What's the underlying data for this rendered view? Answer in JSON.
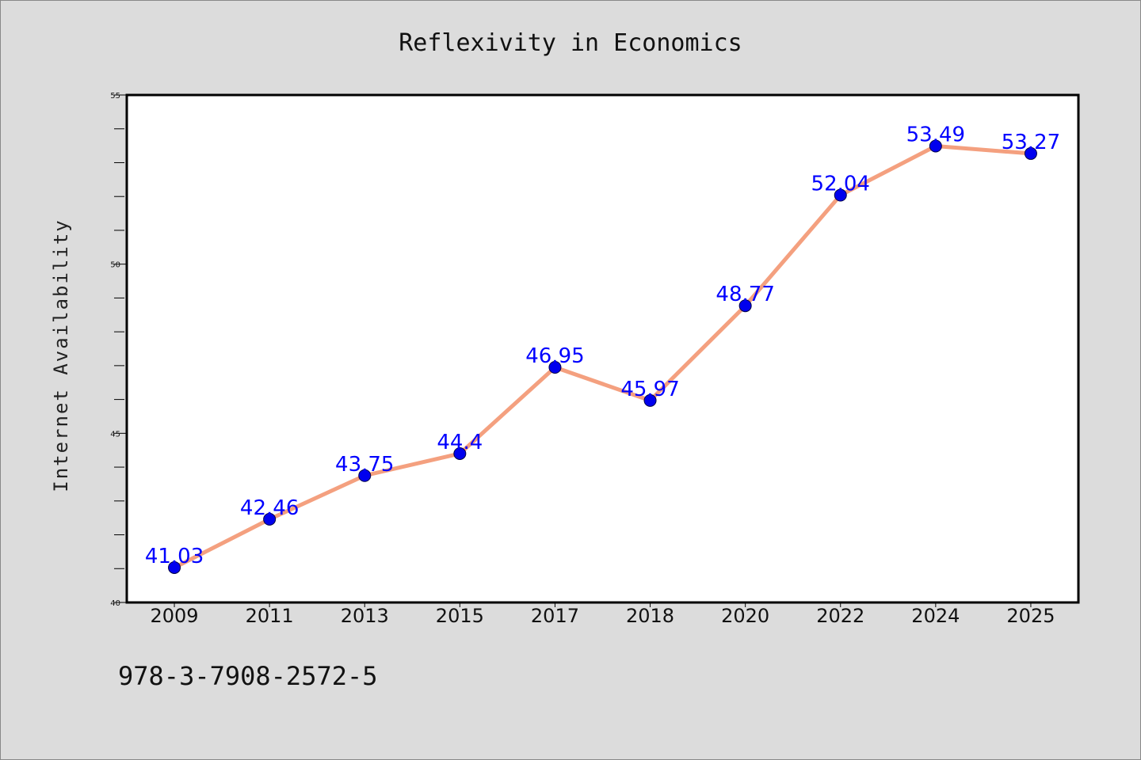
{
  "chart_data": {
    "type": "line",
    "title": "Reflexivity in Economics",
    "xlabel": "",
    "ylabel": "Internet Availability",
    "categories": [
      "2009",
      "2011",
      "2013",
      "2015",
      "2017",
      "2018",
      "2020",
      "2022",
      "2024",
      "2025"
    ],
    "series": [
      {
        "values": [
          41.03,
          42.46,
          43.75,
          44.4,
          46.95,
          45.97,
          48.77,
          52.04,
          53.49,
          53.27
        ],
        "labels": [
          "41.03",
          "42.46",
          "43.75",
          "44.4",
          "46.95",
          "45.97",
          "48.77",
          "52.04",
          "53.49",
          "53.27"
        ]
      }
    ],
    "ylim": [
      40,
      55
    ],
    "yticks": [
      "40",
      "45",
      "50",
      "55"
    ],
    "grid": false,
    "legend": "none"
  },
  "footer": {
    "code": "978-3-7908-2572-5"
  },
  "colors": {
    "background": "#dcdcdc",
    "plot_area": "#ffffff",
    "line": "#f4a07f",
    "marker": "#0000ee",
    "data_label": "#0000ff"
  }
}
